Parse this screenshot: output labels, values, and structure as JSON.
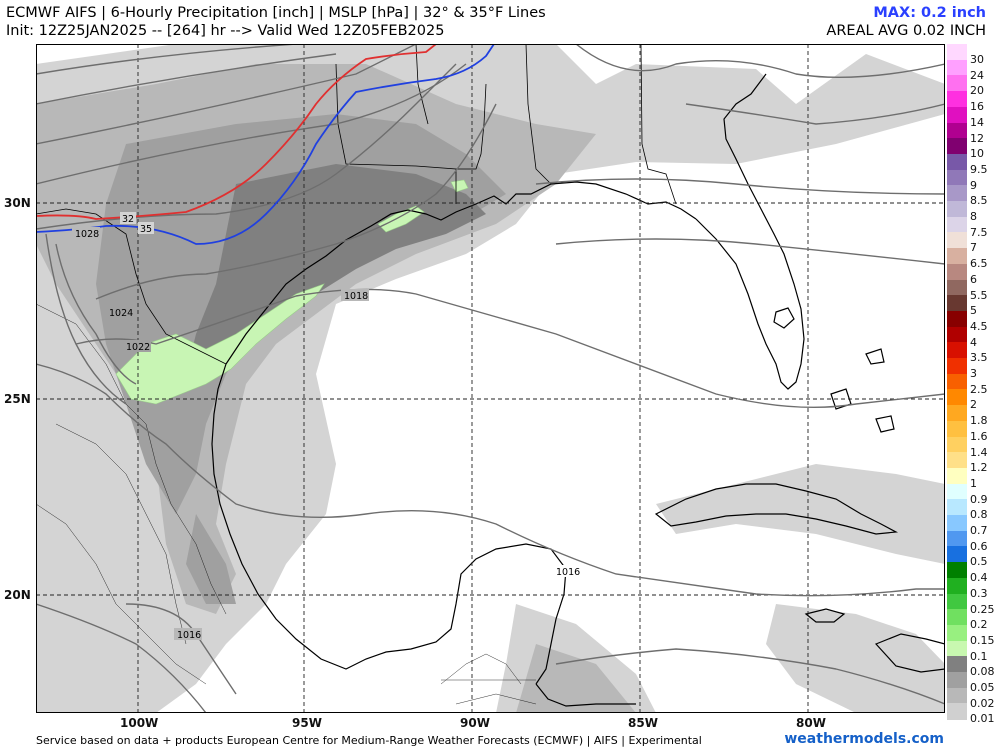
{
  "header": {
    "title": "ECMWF AIFS | 6-Hourly Precipitation [inch] | MSLP [hPa] | 32° & 35°F Lines",
    "init": "Init: 12Z25JAN2025 -- [264] hr --> Valid Wed 12Z05FEB2025",
    "max": "MAX: 0.2 inch",
    "areal": "AREAL AVG 0.02 INCH"
  },
  "axes": {
    "lat": [
      "30N",
      "25N",
      "20N"
    ],
    "lon": [
      "100W",
      "95W",
      "90W",
      "85W",
      "80W"
    ]
  },
  "map": {
    "isobars": [
      "1028",
      "1024",
      "1022",
      "1018",
      "1016",
      "1016"
    ],
    "temp_lines": [
      "32",
      "35"
    ],
    "colors": {
      "line_32F": "#e03030",
      "line_35F": "#2040e0",
      "light_precip": "#c8f5b4"
    }
  },
  "legend": {
    "labels": [
      "30",
      "24",
      "20",
      "16",
      "14",
      "12",
      "10",
      "9.5",
      "9",
      "8.5",
      "8",
      "7.5",
      "7",
      "6.5",
      "6",
      "5.5",
      "5",
      "4.5",
      "4",
      "3.5",
      "3",
      "2.5",
      "2",
      "1.8",
      "1.6",
      "1.4",
      "1.2",
      "1",
      "0.9",
      "0.8",
      "0.7",
      "0.6",
      "0.5",
      "0.4",
      "0.3",
      "0.25",
      "0.2",
      "0.15",
      "0.1",
      "0.08",
      "0.05",
      "0.02",
      "0.01"
    ],
    "colors": [
      "#ffd8ff",
      "#ffa0ff",
      "#ff70f0",
      "#ff30e0",
      "#e010c0",
      "#b00090",
      "#800070",
      "#7858a8",
      "#9078b8",
      "#a898c8",
      "#c0b8d8",
      "#dcd4e8",
      "#f0e0d8",
      "#d8b0a0",
      "#b88880",
      "#906860",
      "#683830",
      "#880000",
      "#b00000",
      "#d81000",
      "#f03000",
      "#f86000",
      "#ff8800",
      "#ffa820",
      "#ffc040",
      "#ffd060",
      "#ffe088",
      "#ffffc0",
      "#e0ffff",
      "#b8e8ff",
      "#88c8ff",
      "#5098f0",
      "#1870e0",
      "#008000",
      "#20b020",
      "#40c840",
      "#70e060",
      "#98f080",
      "#c8f8b0",
      "#808080",
      "#a0a0a0",
      "#b8b8b8",
      "#d0d0d0"
    ]
  },
  "footer": {
    "source": "Service based on data + products European Centre for Medium-Range Weather Forecasts (ECMWF) | AIFS | Experimental",
    "brand": "weathermodels.com"
  }
}
